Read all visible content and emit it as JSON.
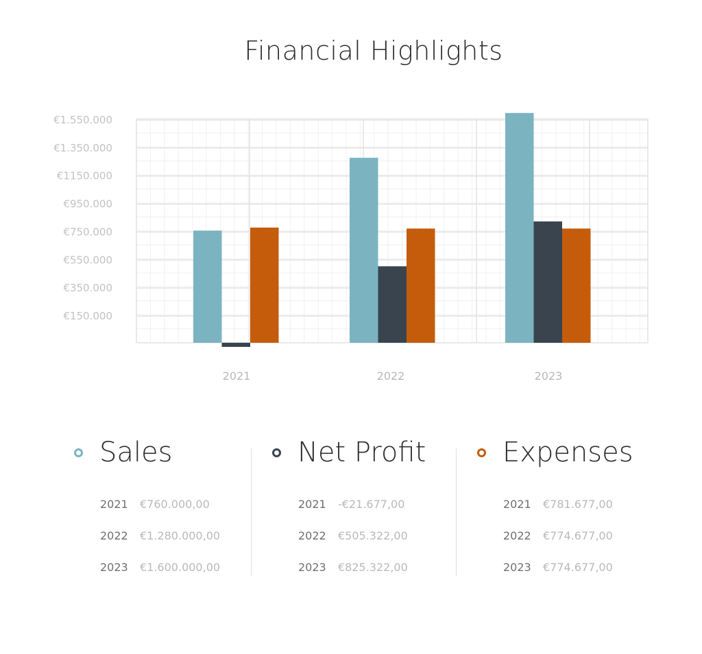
{
  "title": "Financial Highlights",
  "chart_data": {
    "type": "bar",
    "categories": [
      "2021",
      "2022",
      "2023"
    ],
    "series": [
      {
        "name": "Sales",
        "color": "#7bb3c1",
        "values": [
          760000,
          1280000,
          1600000
        ]
      },
      {
        "name": "Net Profit",
        "color": "#39444f",
        "values": [
          -21677,
          505322,
          825322
        ]
      },
      {
        "name": "Expenses",
        "color": "#c45c0b",
        "values": [
          781677,
          774677,
          774677
        ]
      }
    ],
    "ytick_values": [
      150000,
      350000,
      550000,
      750000,
      950000,
      1150000,
      1350000,
      1550000
    ],
    "ytick_labels": [
      "€150.000",
      "€350.000",
      "€550.000",
      "€750.000",
      "€950.000",
      "€1150.000",
      "€1.350.000",
      "€1.550.000"
    ],
    "ylim": [
      -50000,
      1600000
    ],
    "grid": true,
    "legend_position": "bottom"
  },
  "legend": [
    {
      "name": "Sales",
      "color": "#7bb3c1",
      "rows": [
        {
          "year": "2021",
          "value": "€760.000,00"
        },
        {
          "year": "2022",
          "value": "€1.280.000,00"
        },
        {
          "year": "2023",
          "value": "€1.600.000,00"
        }
      ]
    },
    {
      "name": "Net Profit",
      "color": "#39444f",
      "rows": [
        {
          "year": "2021",
          "value": "-€21.677,00"
        },
        {
          "year": "2022",
          "value": "€505.322,00"
        },
        {
          "year": "2023",
          "value": "€825.322,00"
        }
      ]
    },
    {
      "name": "Expenses",
      "color": "#c45c0b",
      "rows": [
        {
          "year": "2021",
          "value": "€781.677,00"
        },
        {
          "year": "2022",
          "value": "€774.677,00"
        },
        {
          "year": "2023",
          "value": "€774.677,00"
        }
      ]
    }
  ]
}
